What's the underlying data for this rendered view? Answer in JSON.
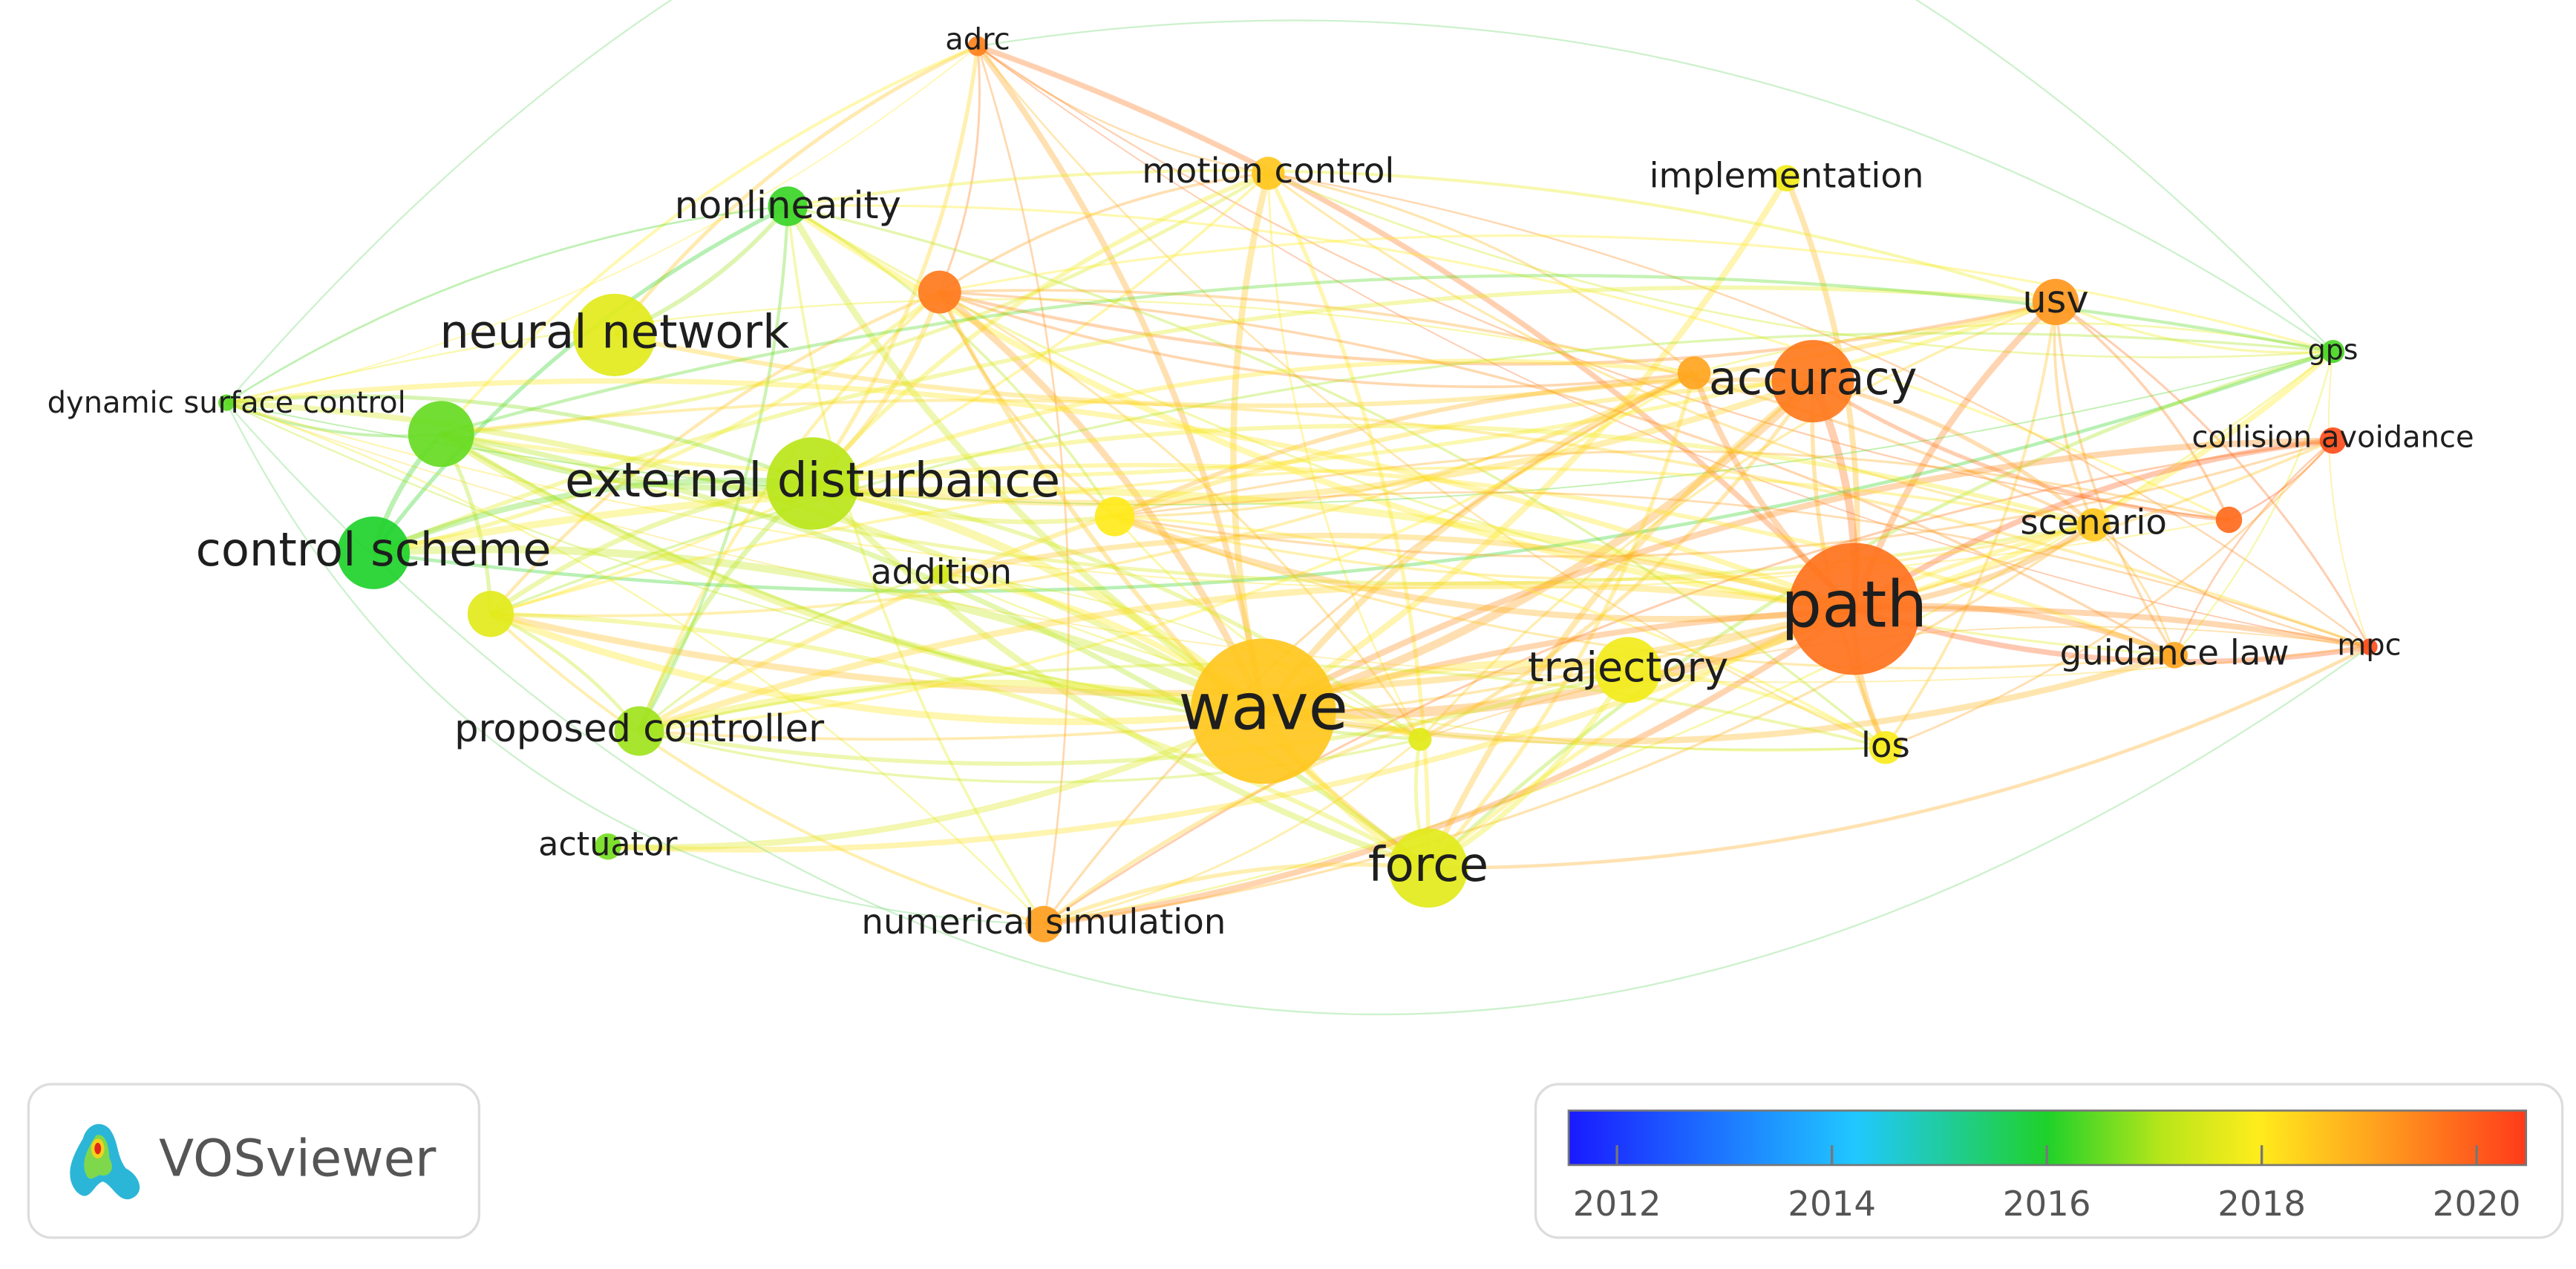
{
  "nodes": [
    {
      "label": "adrc",
      "year": 2019.5
    },
    {
      "label": "motion control",
      "year": 2018.5
    },
    {
      "label": "implementation",
      "year": 2017.8
    },
    {
      "label": "nonlinearity",
      "year": 2016.2
    },
    {
      "label": null,
      "year": 2019.6
    },
    {
      "label": "usv",
      "year": 2019.2
    },
    {
      "label": "gps",
      "year": 2016.3
    },
    {
      "label": "neural network",
      "year": 2017.6
    },
    {
      "label": "accuracy",
      "year": 2019.6
    },
    {
      "label": null,
      "year": 2019.0
    },
    {
      "label": "dynamic surface control",
      "year": 2016.4
    },
    {
      "label": null,
      "year": 2016.5
    },
    {
      "label": "control scheme",
      "year": 2016.0
    },
    {
      "label": "collision avoidance",
      "year": 2020.2
    },
    {
      "label": "external disturbance",
      "year": 2017.1
    },
    {
      "label": null,
      "year": 2018.0
    },
    {
      "label": "scenario",
      "year": 2018.5
    },
    {
      "label": null,
      "year": 2019.8
    },
    {
      "label": "addition",
      "year": 2017.4
    },
    {
      "label": null,
      "year": 2017.6
    },
    {
      "label": "path",
      "year": 2019.7
    },
    {
      "label": "mpc",
      "year": 2020.2
    },
    {
      "label": "guidance law",
      "year": 2019.0
    },
    {
      "label": "trajectory",
      "year": 2017.8
    },
    {
      "label": "wave",
      "year": 2018.5
    },
    {
      "label": "proposed controller",
      "year": 2016.9
    },
    {
      "label": null,
      "year": 2017.6
    },
    {
      "label": "los",
      "year": 2017.9
    },
    {
      "label": "actuator",
      "year": 2016.6
    },
    {
      "label": "force",
      "year": 2017.6
    },
    {
      "label": "numerical simulation",
      "year": 2019.1
    }
  ],
  "colorbar": {
    "range": [
      2011.55,
      2020.46
    ],
    "ticks": [
      2012,
      2014,
      2016,
      2018,
      2020
    ]
  },
  "logo": "VOSviewer"
}
